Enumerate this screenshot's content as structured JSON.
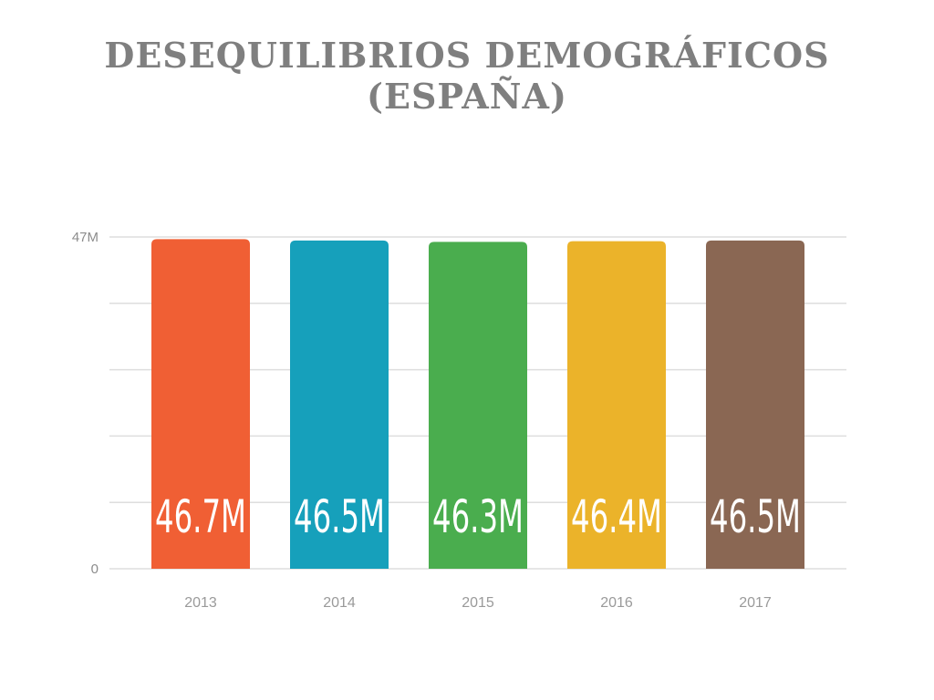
{
  "title": "DESEQUILIBRIOS DEMOGRÁFICOS (ESPAÑA)",
  "chart_data": {
    "type": "bar",
    "categories": [
      "2013",
      "2014",
      "2015",
      "2016",
      "2017"
    ],
    "values": [
      46.7,
      46.5,
      46.3,
      46.4,
      46.5
    ],
    "value_labels": [
      "46.7M",
      "46.5M",
      "46.3M",
      "46.4M",
      "46.5M"
    ],
    "colors": [
      "#f05f34",
      "#16a0bb",
      "#4aad4e",
      "#ebb32a",
      "#8a6753"
    ],
    "ylim": [
      0,
      47
    ],
    "yticks": [
      {
        "value": 0,
        "label": "0"
      },
      {
        "value": 47,
        "label": "47M"
      }
    ],
    "gridlines": 5,
    "grid": true,
    "xlabel": "",
    "ylabel": "",
    "legend": "none"
  }
}
